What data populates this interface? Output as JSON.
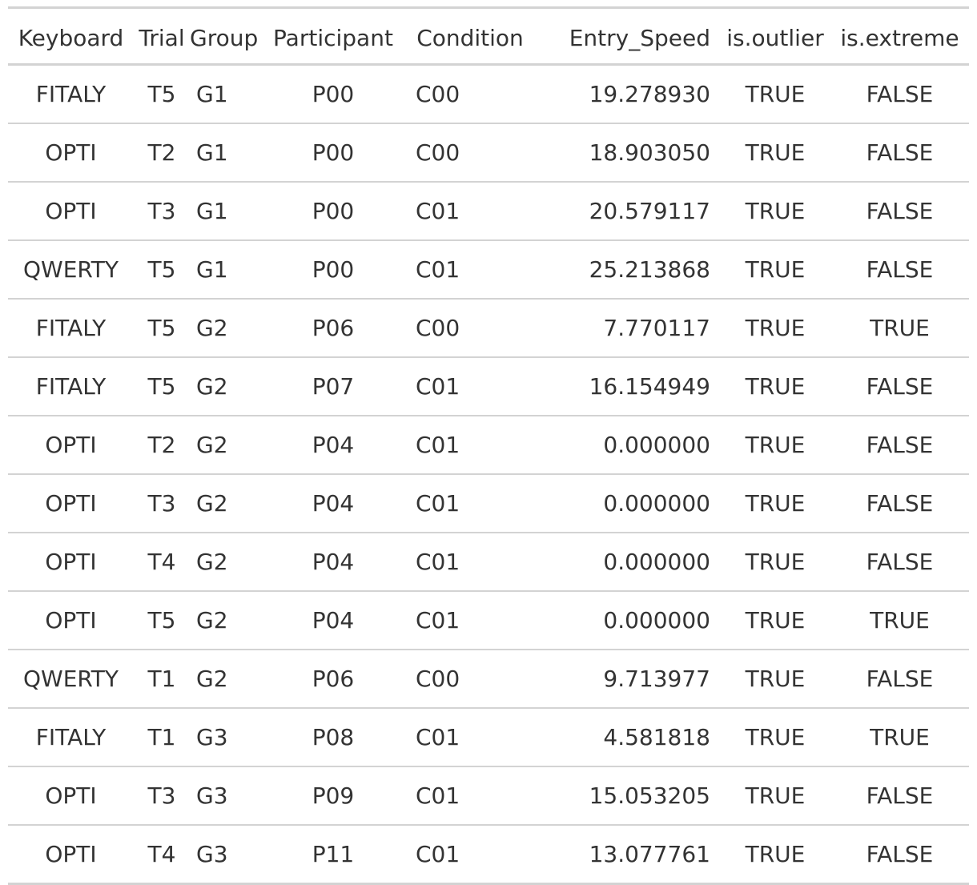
{
  "table": {
    "columns": [
      "Keyboard",
      "Trial",
      "Group",
      "Participant",
      "Condition",
      "Entry_Speed",
      "is.outlier",
      "is.extreme"
    ],
    "rows": [
      [
        "FITALY",
        "T5",
        "G1",
        "P00",
        "C00",
        "19.278930",
        "TRUE",
        "FALSE"
      ],
      [
        "OPTI",
        "T2",
        "G1",
        "P00",
        "C00",
        "18.903050",
        "TRUE",
        "FALSE"
      ],
      [
        "OPTI",
        "T3",
        "G1",
        "P00",
        "C01",
        "20.579117",
        "TRUE",
        "FALSE"
      ],
      [
        "QWERTY",
        "T5",
        "G1",
        "P00",
        "C01",
        "25.213868",
        "TRUE",
        "FALSE"
      ],
      [
        "FITALY",
        "T5",
        "G2",
        "P06",
        "C00",
        "7.770117",
        "TRUE",
        "TRUE"
      ],
      [
        "FITALY",
        "T5",
        "G2",
        "P07",
        "C01",
        "16.154949",
        "TRUE",
        "FALSE"
      ],
      [
        "OPTI",
        "T2",
        "G2",
        "P04",
        "C01",
        "0.000000",
        "TRUE",
        "FALSE"
      ],
      [
        "OPTI",
        "T3",
        "G2",
        "P04",
        "C01",
        "0.000000",
        "TRUE",
        "FALSE"
      ],
      [
        "OPTI",
        "T4",
        "G2",
        "P04",
        "C01",
        "0.000000",
        "TRUE",
        "FALSE"
      ],
      [
        "OPTI",
        "T5",
        "G2",
        "P04",
        "C01",
        "0.000000",
        "TRUE",
        "TRUE"
      ],
      [
        "QWERTY",
        "T1",
        "G2",
        "P06",
        "C00",
        "9.713977",
        "TRUE",
        "FALSE"
      ],
      [
        "FITALY",
        "T1",
        "G3",
        "P08",
        "C01",
        "4.581818",
        "TRUE",
        "TRUE"
      ],
      [
        "OPTI",
        "T3",
        "G3",
        "P09",
        "C01",
        "15.053205",
        "TRUE",
        "FALSE"
      ],
      [
        "OPTI",
        "T4",
        "G3",
        "P11",
        "C01",
        "13.077761",
        "TRUE",
        "FALSE"
      ]
    ]
  }
}
